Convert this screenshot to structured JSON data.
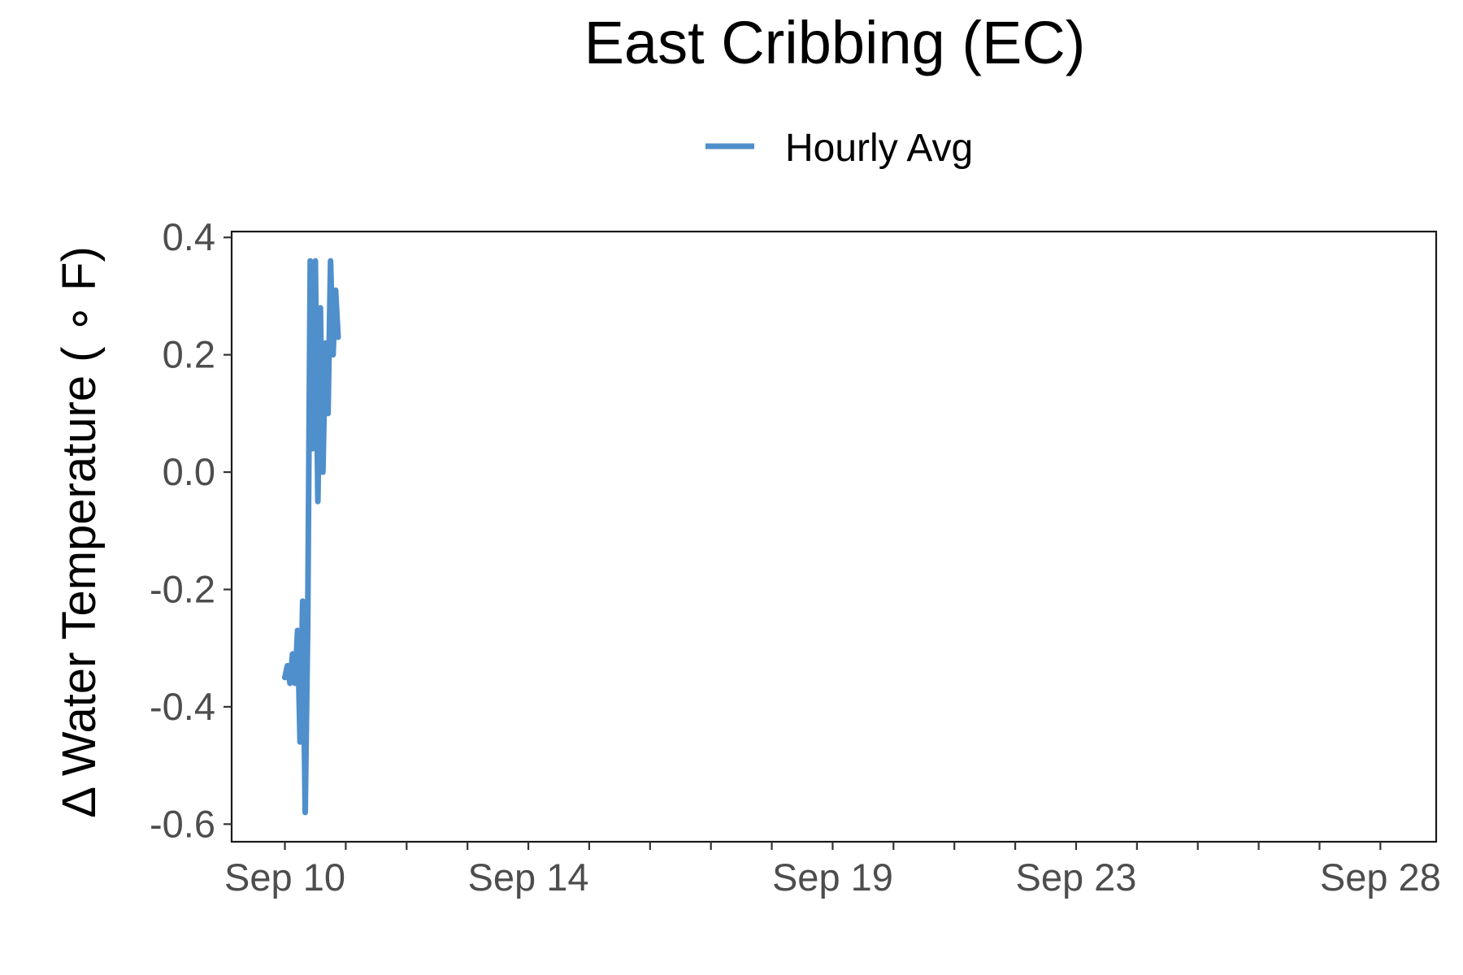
{
  "chart_data": {
    "type": "line",
    "title": "East Cribbing (EC)",
    "ylabel": "Δ Water Temperature ( ∘ F)",
    "xlabel": "",
    "legend": {
      "position": "top",
      "entries": [
        "Hourly Avg"
      ]
    },
    "grid": false,
    "x_axis": {
      "type": "date",
      "range": [
        "2023-09-09 03:00",
        "2023-09-28 22:00"
      ],
      "major_ticks": [
        {
          "date": "2023-09-10",
          "label": "Sep 10"
        },
        {
          "date": "2023-09-14",
          "label": "Sep 14"
        },
        {
          "date": "2023-09-19",
          "label": "Sep 19"
        },
        {
          "date": "2023-09-23",
          "label": "Sep 23"
        },
        {
          "date": "2023-09-28",
          "label": "Sep 28"
        }
      ],
      "minor_ticks": [
        "2023-09-11",
        "2023-09-12",
        "2023-09-13",
        "2023-09-15",
        "2023-09-16",
        "2023-09-17",
        "2023-09-18",
        "2023-09-20",
        "2023-09-21",
        "2023-09-22",
        "2023-09-24",
        "2023-09-25",
        "2023-09-26",
        "2023-09-27"
      ]
    },
    "y_axis": {
      "range": [
        -0.63,
        0.41
      ],
      "ticks": [
        {
          "value": 0.4,
          "label": "0.4"
        },
        {
          "value": 0.2,
          "label": "0.2"
        },
        {
          "value": 0.0,
          "label": "0.0"
        },
        {
          "value": -0.2,
          "label": "-0.2"
        },
        {
          "value": -0.4,
          "label": "-0.4"
        },
        {
          "value": -0.6,
          "label": "-0.6"
        }
      ]
    },
    "series": [
      {
        "name": "Hourly Avg",
        "color": "#4f8fcb",
        "points": [
          {
            "x": "2023-09-10 00:00",
            "y": -0.35
          },
          {
            "x": "2023-09-10 01:00",
            "y": -0.33
          },
          {
            "x": "2023-09-10 02:00",
            "y": -0.36
          },
          {
            "x": "2023-09-10 03:00",
            "y": -0.31
          },
          {
            "x": "2023-09-10 04:00",
            "y": -0.36
          },
          {
            "x": "2023-09-10 05:00",
            "y": -0.27
          },
          {
            "x": "2023-09-10 06:00",
            "y": -0.46
          },
          {
            "x": "2023-09-10 07:00",
            "y": -0.22
          },
          {
            "x": "2023-09-10 08:00",
            "y": -0.58
          },
          {
            "x": "2023-09-10 09:00",
            "y": -0.26
          },
          {
            "x": "2023-09-10 10:00",
            "y": 0.36
          },
          {
            "x": "2023-09-10 11:00",
            "y": 0.04
          },
          {
            "x": "2023-09-10 12:00",
            "y": 0.36
          },
          {
            "x": "2023-09-10 13:00",
            "y": -0.05
          },
          {
            "x": "2023-09-10 14:00",
            "y": 0.28
          },
          {
            "x": "2023-09-10 15:00",
            "y": 0.0
          },
          {
            "x": "2023-09-10 16:00",
            "y": 0.22
          },
          {
            "x": "2023-09-10 17:00",
            "y": 0.1
          },
          {
            "x": "2023-09-10 18:00",
            "y": 0.36
          },
          {
            "x": "2023-09-10 19:00",
            "y": 0.2
          },
          {
            "x": "2023-09-10 20:00",
            "y": 0.31
          },
          {
            "x": "2023-09-10 21:00",
            "y": 0.23
          }
        ]
      }
    ]
  }
}
